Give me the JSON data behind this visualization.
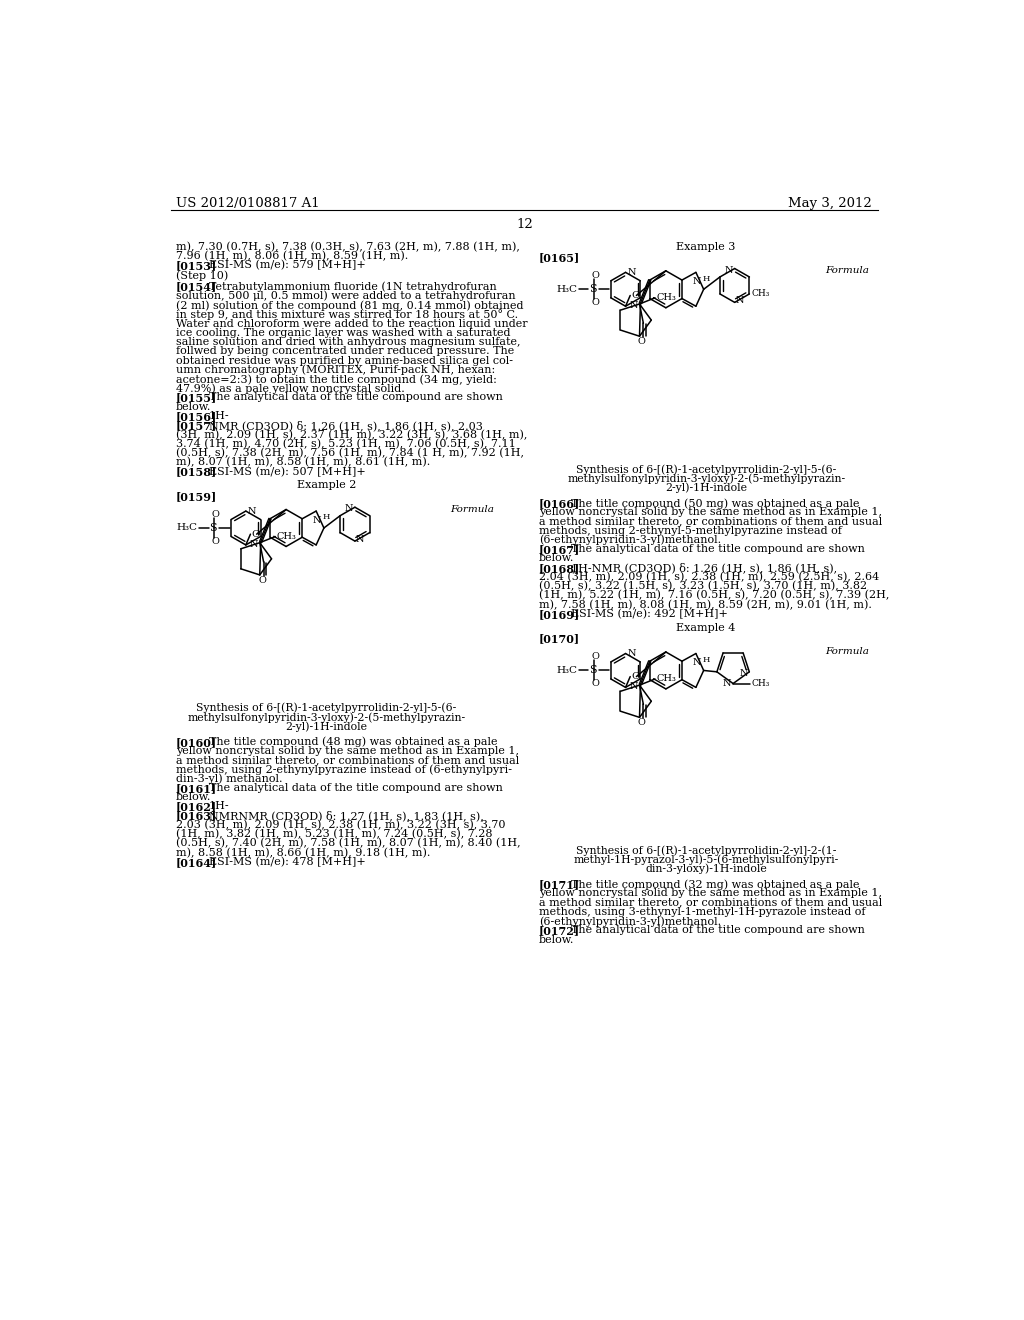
{
  "bg": "#ffffff",
  "header_left": "US 2012/0108817 A1",
  "header_right": "May 3, 2012",
  "page_number": "12"
}
